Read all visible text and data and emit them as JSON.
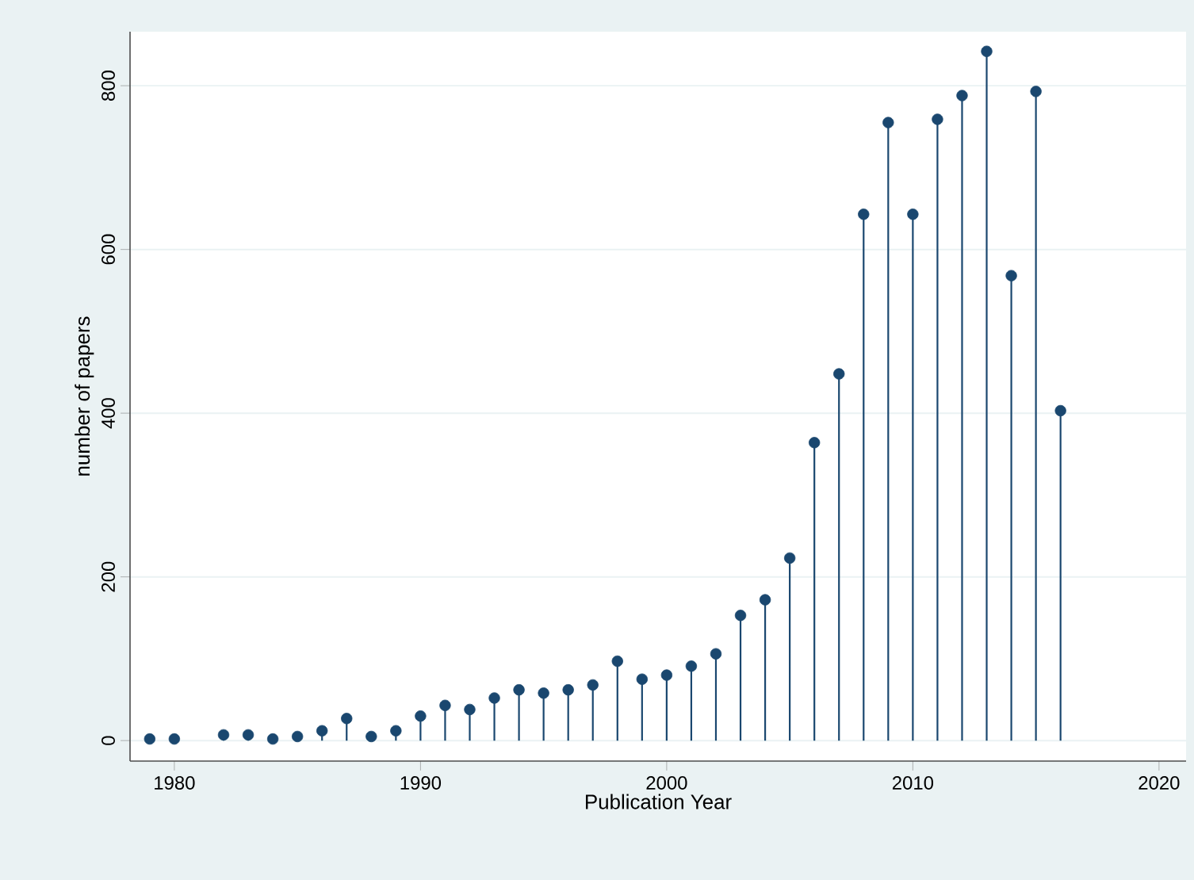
{
  "chart_data": {
    "type": "lollipop",
    "xlabel": "Publication Year",
    "ylabel": "number of papers",
    "x": [
      1979,
      1980,
      1982,
      1983,
      1984,
      1985,
      1986,
      1987,
      1988,
      1989,
      1990,
      1991,
      1992,
      1993,
      1994,
      1995,
      1996,
      1997,
      1998,
      1999,
      2000,
      2001,
      2002,
      2003,
      2004,
      2005,
      2006,
      2007,
      2008,
      2009,
      2010,
      2011,
      2012,
      2013,
      2014,
      2015,
      2016
    ],
    "values": [
      2,
      2,
      7,
      7,
      2,
      5,
      12,
      27,
      5,
      12,
      30,
      43,
      38,
      52,
      62,
      58,
      62,
      68,
      97,
      75,
      80,
      91,
      106,
      153,
      172,
      223,
      364,
      448,
      643,
      755,
      643,
      759,
      788,
      842,
      568,
      793,
      403
    ],
    "color": "#1a476f",
    "marker": "circle",
    "grid": "y",
    "xlim": [
      1978.2,
      2021.1
    ],
    "ylim": [
      -25,
      866
    ],
    "xticks": [
      1980,
      1990,
      2000,
      2010,
      2020
    ],
    "yticks": [
      0,
      200,
      400,
      600,
      800
    ]
  }
}
